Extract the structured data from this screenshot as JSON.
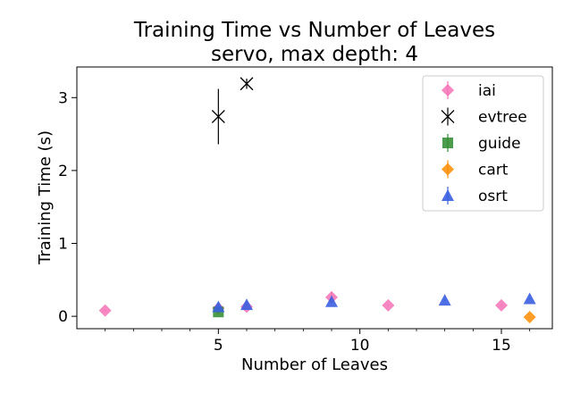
{
  "chart_data": {
    "type": "scatter",
    "title": "Training Time vs Number of Leaves",
    "subtitle": "servo, max depth: 4",
    "xlabel": "Number of Leaves",
    "ylabel": "Training Time (s)",
    "xlim": [
      0.0,
      16.8
    ],
    "ylim": [
      -0.17,
      3.42
    ],
    "xticks": [
      5,
      10,
      15
    ],
    "xtick_labels": [
      "5",
      "10",
      "15"
    ],
    "yticks": [
      0,
      1,
      2,
      3
    ],
    "ytick_labels": [
      "0",
      "1",
      "2",
      "3"
    ],
    "grid": false,
    "legend_position": "top-right",
    "series": [
      {
        "name": "iai",
        "marker": "diamond",
        "color": "#f472b6",
        "points": [
          {
            "x": 1,
            "y": 0.08,
            "err": 0.01
          },
          {
            "x": 5,
            "y": 0.11,
            "err": 0.01
          },
          {
            "x": 6,
            "y": 0.13,
            "err": 0.01
          },
          {
            "x": 9,
            "y": 0.26,
            "err": 0.08
          },
          {
            "x": 11,
            "y": 0.15,
            "err": 0.01
          },
          {
            "x": 15,
            "y": 0.15,
            "err": 0.01
          }
        ]
      },
      {
        "name": "evtree",
        "marker": "x",
        "color": "#000000",
        "points": [
          {
            "x": 5,
            "y": 2.74,
            "err": 0.38
          },
          {
            "x": 6,
            "y": 3.19,
            "err": 0.07
          }
        ]
      },
      {
        "name": "guide",
        "marker": "square",
        "color": "#2e8b2e",
        "points": [
          {
            "x": 5,
            "y": 0.06,
            "err": 0.01
          }
        ]
      },
      {
        "name": "cart",
        "marker": "diamond",
        "color": "#ff8c00",
        "points": [
          {
            "x": 16,
            "y": -0.01,
            "err": 0.0
          }
        ]
      },
      {
        "name": "osrt",
        "marker": "triangle",
        "color": "#3a5fe0",
        "points": [
          {
            "x": 5,
            "y": 0.13,
            "err": 0.01
          },
          {
            "x": 6,
            "y": 0.16,
            "err": 0.01
          },
          {
            "x": 9,
            "y": 0.2,
            "err": 0.01
          },
          {
            "x": 13,
            "y": 0.22,
            "err": 0.01
          },
          {
            "x": 16,
            "y": 0.24,
            "err": 0.01
          }
        ]
      }
    ]
  }
}
